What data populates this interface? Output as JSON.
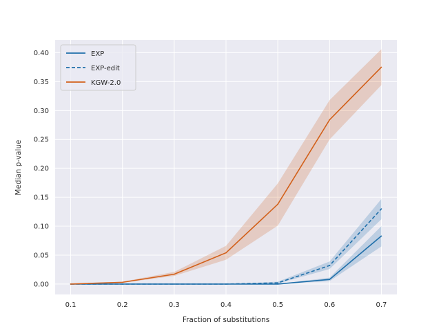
{
  "chart_data": {
    "type": "line",
    "title": "",
    "xlabel": "Fraction of substitutions",
    "ylabel": "Median p-value",
    "x": [
      0.1,
      0.2,
      0.3,
      0.4,
      0.5,
      0.6,
      0.7
    ],
    "xticks": [
      "0.1",
      "0.2",
      "0.3",
      "0.4",
      "0.5",
      "0.6",
      "0.7"
    ],
    "yticks": [
      "0.00",
      "0.05",
      "0.10",
      "0.15",
      "0.20",
      "0.25",
      "0.30",
      "0.35",
      "0.40"
    ],
    "xlim": [
      0.07,
      0.73
    ],
    "ylim": [
      -0.018,
      0.422
    ],
    "grid": true,
    "legend_position": "top-left",
    "series": [
      {
        "name": "EXP",
        "color": "#1f6faa",
        "dash": "solid",
        "values": [
          0.0,
          0.0,
          0.0,
          0.0,
          0.0,
          0.008,
          0.083
        ],
        "lower": [
          0.0,
          0.0,
          0.0,
          0.0,
          0.0,
          0.005,
          0.065
        ],
        "upper": [
          0.0,
          0.0,
          0.0,
          0.0,
          0.0,
          0.011,
          0.1
        ]
      },
      {
        "name": "EXP-edit",
        "color": "#1f6faa",
        "dash": "dashed",
        "values": [
          0.0,
          0.0,
          0.0,
          0.0,
          0.002,
          0.032,
          0.13
        ],
        "lower": [
          0.0,
          0.0,
          0.0,
          0.0,
          0.001,
          0.026,
          0.112
        ],
        "upper": [
          0.0,
          0.0,
          0.0,
          0.0,
          0.004,
          0.039,
          0.147
        ]
      },
      {
        "name": "KGW-2.0",
        "color": "#d2601a",
        "dash": "solid",
        "values": [
          0.0,
          0.003,
          0.017,
          0.054,
          0.138,
          0.284,
          0.375
        ],
        "lower": [
          0.0,
          0.002,
          0.014,
          0.042,
          0.101,
          0.25,
          0.344
        ],
        "upper": [
          0.001,
          0.004,
          0.021,
          0.066,
          0.174,
          0.318,
          0.406
        ]
      }
    ]
  }
}
